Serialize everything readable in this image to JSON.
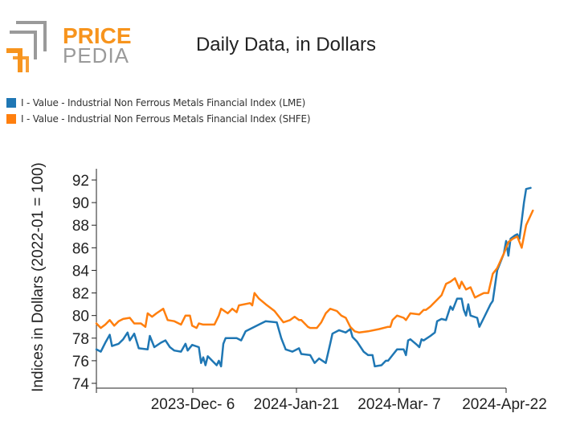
{
  "logo": {
    "word1": "PRICE",
    "word2": "PEDIA",
    "accent": "#f7941d",
    "grey": "#9a9a9a"
  },
  "chart_data": {
    "type": "line",
    "title": "Daily Data, in Dollars",
    "ylabel": "Indices in Dollars (2022-01 = 100)",
    "xlabel": "",
    "ylim": [
      74,
      93
    ],
    "yticks": [
      74,
      76,
      78,
      80,
      82,
      84,
      86,
      88,
      90,
      92
    ],
    "xticks": [
      "2023-Dec- 6",
      "2024-Jan-21",
      "2024-Mar- 7",
      "2024-Apr-22"
    ],
    "x_start": "2023-10-21",
    "x_end": "2024-04-22",
    "legend_position": "top-left",
    "grid": false,
    "series": [
      {
        "name": "I - Value - Industrial Non Ferrous Metals Financial Index (LME)",
        "color": "#1f77b4",
        "points": [
          [
            "2023-10-21",
            77.0
          ],
          [
            "2023-10-23",
            76.8
          ],
          [
            "2023-10-25",
            77.6
          ],
          [
            "2023-10-27",
            78.3
          ],
          [
            "2023-10-28",
            77.3
          ],
          [
            "2023-10-31",
            77.5
          ],
          [
            "2023-11-02",
            77.9
          ],
          [
            "2023-11-04",
            78.5
          ],
          [
            "2023-11-05",
            77.8
          ],
          [
            "2023-11-07",
            78.4
          ],
          [
            "2023-11-09",
            77.1
          ],
          [
            "2023-11-13",
            77.0
          ],
          [
            "2023-11-14",
            78.2
          ],
          [
            "2023-11-16",
            77.2
          ],
          [
            "2023-11-19",
            77.6
          ],
          [
            "2023-11-21",
            77.8
          ],
          [
            "2023-11-23",
            77.2
          ],
          [
            "2023-11-25",
            76.9
          ],
          [
            "2023-11-28",
            76.8
          ],
          [
            "2023-11-30",
            77.5
          ],
          [
            "2023-12-01",
            76.9
          ],
          [
            "2023-12-03",
            77.4
          ],
          [
            "2023-12-06",
            77.2
          ],
          [
            "2023-12-07",
            75.8
          ],
          [
            "2023-12-08",
            76.3
          ],
          [
            "2023-12-09",
            75.6
          ],
          [
            "2023-12-10",
            76.4
          ],
          [
            "2023-12-12",
            76.0
          ],
          [
            "2023-12-14",
            75.6
          ],
          [
            "2023-12-15",
            76.0
          ],
          [
            "2023-12-16",
            75.5
          ],
          [
            "2023-12-17",
            77.5
          ],
          [
            "2023-12-18",
            78.0
          ],
          [
            "2023-12-23",
            78.0
          ],
          [
            "2023-12-25",
            77.8
          ],
          [
            "2023-12-27",
            78.6
          ],
          [
            "2024-01-03",
            79.3
          ],
          [
            "2024-01-05",
            79.5
          ],
          [
            "2024-01-10",
            79.4
          ],
          [
            "2024-01-12",
            78.0
          ],
          [
            "2024-01-14",
            77.0
          ],
          [
            "2024-01-17",
            76.8
          ],
          [
            "2024-01-20",
            77.1
          ],
          [
            "2024-01-21",
            76.6
          ],
          [
            "2024-01-25",
            76.5
          ],
          [
            "2024-01-27",
            75.8
          ],
          [
            "2024-01-29",
            76.2
          ],
          [
            "2024-02-01",
            75.8
          ],
          [
            "2024-02-03",
            77.5
          ],
          [
            "2024-02-04",
            78.4
          ],
          [
            "2024-02-07",
            78.7
          ],
          [
            "2024-02-10",
            78.5
          ],
          [
            "2024-02-12",
            78.8
          ],
          [
            "2024-02-13",
            78.1
          ],
          [
            "2024-02-15",
            77.7
          ],
          [
            "2024-02-18",
            76.8
          ],
          [
            "2024-02-20",
            76.5
          ],
          [
            "2024-02-22",
            76.5
          ],
          [
            "2024-02-23",
            75.5
          ],
          [
            "2024-02-26",
            75.6
          ],
          [
            "2024-02-28",
            76.0
          ],
          [
            "2024-02-29",
            76.0
          ],
          [
            "2024-03-02",
            76.5
          ],
          [
            "2024-03-04",
            77.0
          ],
          [
            "2024-03-07",
            77.0
          ],
          [
            "2024-03-08",
            76.5
          ],
          [
            "2024-03-09",
            77.8
          ],
          [
            "2024-03-10",
            77.9
          ],
          [
            "2024-03-13",
            77.4
          ],
          [
            "2024-03-14",
            77.2
          ],
          [
            "2024-03-15",
            77.9
          ],
          [
            "2024-03-16",
            77.8
          ],
          [
            "2024-03-19",
            78.2
          ],
          [
            "2024-03-21",
            78.5
          ],
          [
            "2024-03-22",
            79.5
          ],
          [
            "2024-03-24",
            79.7
          ],
          [
            "2024-03-26",
            79.6
          ],
          [
            "2024-03-28",
            80.8
          ],
          [
            "2024-03-29",
            80.5
          ],
          [
            "2024-03-31",
            81.5
          ],
          [
            "2024-04-02",
            81.5
          ],
          [
            "2024-04-03",
            80.5
          ],
          [
            "2024-04-04",
            80.0
          ],
          [
            "2024-04-05",
            81.0
          ],
          [
            "2024-04-06",
            80.0
          ],
          [
            "2024-04-09",
            79.8
          ],
          [
            "2024-04-10",
            79.0
          ],
          [
            "2024-04-12",
            79.8
          ],
          [
            "2024-04-15",
            81.0
          ],
          [
            "2024-04-16",
            81.3
          ],
          [
            "2024-04-18",
            84.0
          ],
          [
            "2024-04-19",
            84.5
          ],
          [
            "2024-04-21",
            85.5
          ],
          [
            "2024-04-22",
            86.6
          ],
          [
            "2024-04-23",
            85.3
          ],
          [
            "2024-04-24",
            86.8
          ],
          [
            "2024-04-26",
            87.1
          ],
          [
            "2024-04-27",
            87.2
          ],
          [
            "2024-04-28",
            86.8
          ],
          [
            "2024-04-30",
            90.0
          ],
          [
            "2024-05-01",
            91.2
          ],
          [
            "2024-05-03",
            91.3
          ]
        ]
      },
      {
        "name": "I - Value - Industrial Non Ferrous Metals Financial Index (SHFE)",
        "color": "#ff7f0e",
        "points": [
          [
            "2023-10-21",
            79.3
          ],
          [
            "2023-10-23",
            78.9
          ],
          [
            "2023-10-25",
            79.2
          ],
          [
            "2023-10-27",
            79.6
          ],
          [
            "2023-10-29",
            79.1
          ],
          [
            "2023-10-31",
            79.5
          ],
          [
            "2023-11-02",
            79.7
          ],
          [
            "2023-11-05",
            79.8
          ],
          [
            "2023-11-07",
            79.3
          ],
          [
            "2023-11-10",
            79.3
          ],
          [
            "2023-11-12",
            79.0
          ],
          [
            "2023-11-13",
            80.2
          ],
          [
            "2023-11-15",
            79.9
          ],
          [
            "2023-11-17",
            80.2
          ],
          [
            "2023-11-20",
            80.6
          ],
          [
            "2023-11-22",
            79.6
          ],
          [
            "2023-11-25",
            79.5
          ],
          [
            "2023-11-28",
            79.2
          ],
          [
            "2023-11-30",
            80.0
          ],
          [
            "2023-12-02",
            80.0
          ],
          [
            "2023-12-03",
            79.1
          ],
          [
            "2023-12-05",
            78.9
          ],
          [
            "2023-12-06",
            79.3
          ],
          [
            "2023-12-08",
            79.2
          ],
          [
            "2023-12-11",
            79.2
          ],
          [
            "2023-12-13",
            79.2
          ],
          [
            "2023-12-15",
            80.0
          ],
          [
            "2023-12-16",
            80.6
          ],
          [
            "2023-12-19",
            80.2
          ],
          [
            "2023-12-21",
            80.6
          ],
          [
            "2023-12-23",
            80.3
          ],
          [
            "2023-12-24",
            80.9
          ],
          [
            "2023-12-29",
            81.1
          ],
          [
            "2023-12-30",
            80.9
          ],
          [
            "2023-12-31",
            82.0
          ],
          [
            "2024-01-02",
            81.5
          ],
          [
            "2024-01-05",
            81.0
          ],
          [
            "2024-01-09",
            80.4
          ],
          [
            "2024-01-11",
            79.9
          ],
          [
            "2024-01-13",
            79.4
          ],
          [
            "2024-01-16",
            79.6
          ],
          [
            "2024-01-18",
            79.9
          ],
          [
            "2024-01-20",
            79.6
          ],
          [
            "2024-01-21",
            79.6
          ],
          [
            "2024-01-24",
            79.0
          ],
          [
            "2024-01-25",
            78.9
          ],
          [
            "2024-01-28",
            78.9
          ],
          [
            "2024-01-30",
            79.4
          ],
          [
            "2024-02-01",
            80.2
          ],
          [
            "2024-02-03",
            80.6
          ],
          [
            "2024-02-06",
            80.4
          ],
          [
            "2024-02-08",
            80.0
          ],
          [
            "2024-02-10",
            79.8
          ],
          [
            "2024-02-12",
            79.0
          ],
          [
            "2024-02-14",
            78.6
          ],
          [
            "2024-02-16",
            78.5
          ],
          [
            "2024-02-20",
            78.6
          ],
          [
            "2024-02-25",
            78.8
          ],
          [
            "2024-02-29",
            79.0
          ],
          [
            "2024-03-01",
            79.0
          ],
          [
            "2024-03-02",
            79.6
          ],
          [
            "2024-03-04",
            80.0
          ],
          [
            "2024-03-07",
            79.8
          ],
          [
            "2024-03-08",
            79.6
          ],
          [
            "2024-03-10",
            80.2
          ],
          [
            "2024-03-14",
            80.1
          ],
          [
            "2024-03-16",
            80.5
          ],
          [
            "2024-03-17",
            80.5
          ],
          [
            "2024-03-19",
            80.8
          ],
          [
            "2024-03-20",
            81.0
          ],
          [
            "2024-03-22",
            81.4
          ],
          [
            "2024-03-24",
            81.8
          ],
          [
            "2024-03-26",
            82.8
          ],
          [
            "2024-03-28",
            83.0
          ],
          [
            "2024-03-30",
            83.3
          ],
          [
            "2024-04-01",
            82.4
          ],
          [
            "2024-04-02",
            83.0
          ],
          [
            "2024-04-04",
            82.3
          ],
          [
            "2024-04-06",
            82.5
          ],
          [
            "2024-04-08",
            81.6
          ],
          [
            "2024-04-10",
            81.8
          ],
          [
            "2024-04-12",
            82.0
          ],
          [
            "2024-04-14",
            82.0
          ],
          [
            "2024-04-16",
            83.7
          ],
          [
            "2024-04-18",
            84.2
          ],
          [
            "2024-04-21",
            85.5
          ],
          [
            "2024-04-23",
            86.5
          ],
          [
            "2024-04-25",
            86.8
          ],
          [
            "2024-04-27",
            87.0
          ],
          [
            "2024-04-29",
            86.0
          ],
          [
            "2024-05-01",
            88.0
          ],
          [
            "2024-05-04",
            89.3
          ]
        ]
      }
    ]
  }
}
